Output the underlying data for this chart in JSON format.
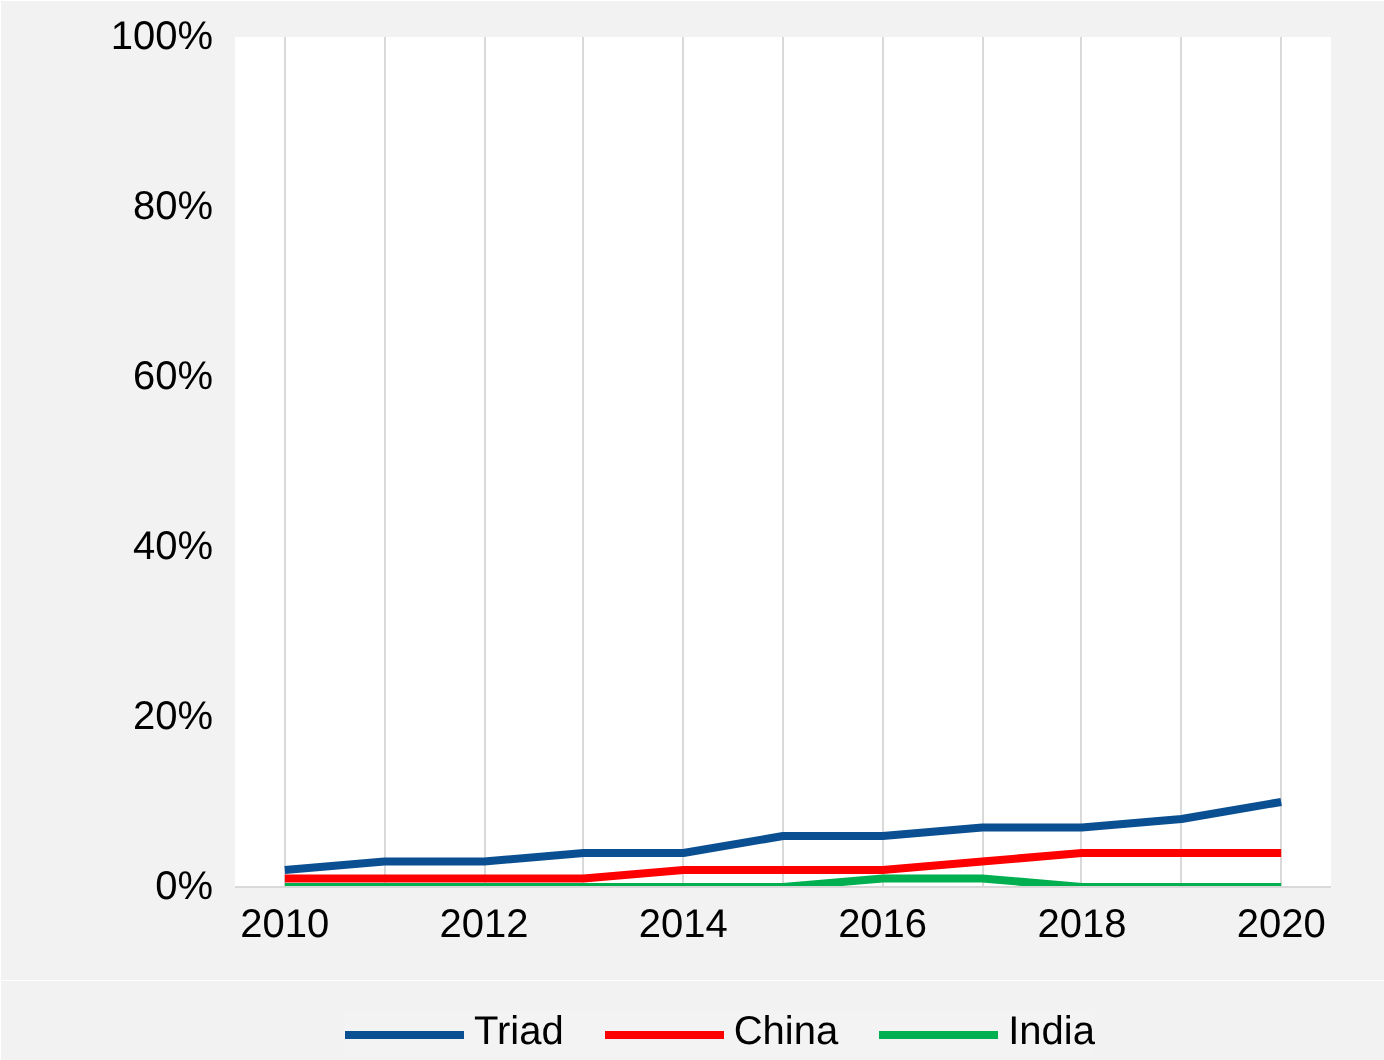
{
  "chart_data": {
    "type": "line",
    "x": [
      2010,
      2011,
      2012,
      2013,
      2014,
      2015,
      2016,
      2017,
      2018,
      2019,
      2020
    ],
    "xlim": [
      2009.5,
      2020.5
    ],
    "xticks": [
      2010,
      {
        "value": 2011,
        "label": null
      },
      2012,
      {
        "value": 2013,
        "label": null
      },
      2014,
      {
        "value": 2015,
        "label": null
      },
      2016,
      {
        "value": 2017,
        "label": null
      },
      2018,
      {
        "value": 2019,
        "label": null
      },
      2020
    ],
    "ylim": [
      0,
      100
    ],
    "yticks": [
      {
        "value": 0,
        "label": "0%"
      },
      {
        "value": 20,
        "label": "20%"
      },
      {
        "value": 40,
        "label": "40%"
      },
      {
        "value": 60,
        "label": "60%"
      },
      {
        "value": 80,
        "label": "80%"
      },
      {
        "value": 100,
        "label": "100%"
      }
    ],
    "grid": "x",
    "legend": "bottom",
    "line_style": "solid",
    "series": [
      {
        "name": "Triad",
        "color": "#0a4f91",
        "values": [
          2,
          3,
          3,
          4,
          4,
          6,
          6,
          7,
          7,
          8,
          10
        ]
      },
      {
        "name": "China",
        "color": "#ff0000",
        "values": [
          1,
          1,
          1,
          1,
          2,
          2,
          2,
          3,
          4,
          4,
          4
        ]
      },
      {
        "name": "India",
        "color": "#00b050",
        "values": [
          0,
          0,
          0,
          0,
          0,
          0,
          1,
          1,
          0,
          0,
          0
        ]
      }
    ]
  }
}
